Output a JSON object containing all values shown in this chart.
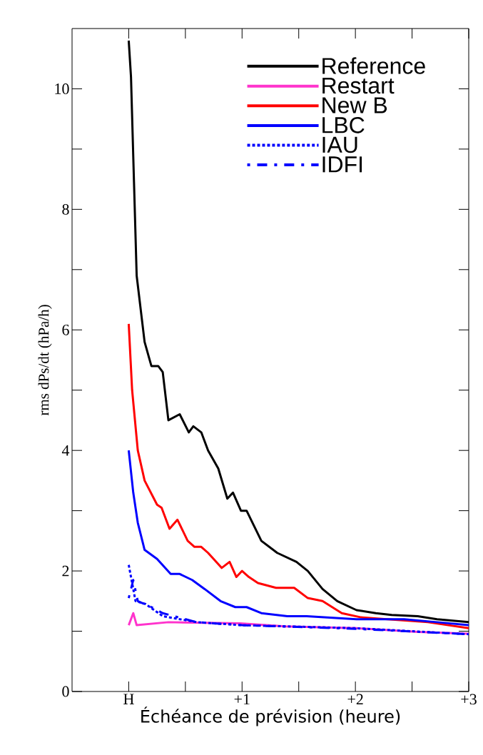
{
  "chart_data": {
    "type": "line",
    "xlabel": "Échéance de prévision (heure)",
    "ylabel": "rms dPs/dt (hPa/h)",
    "xlim": [
      -0.5,
      3
    ],
    "ylim": [
      0,
      11
    ],
    "xticks": [
      {
        "value": 0,
        "label": "H"
      },
      {
        "value": 0.5,
        "label": null
      },
      {
        "value": 1,
        "label": "+1"
      },
      {
        "value": 1.5,
        "label": null
      },
      {
        "value": 2,
        "label": "+2"
      },
      {
        "value": 2.5,
        "label": null
      },
      {
        "value": 3,
        "label": "+3"
      }
    ],
    "yticks": [
      0,
      {
        "value": 1,
        "label": null
      },
      2,
      {
        "value": 3,
        "label": null
      },
      4,
      {
        "value": 5,
        "label": null
      },
      6,
      {
        "value": 7,
        "label": null
      },
      8,
      {
        "value": 9,
        "label": null
      },
      10
    ],
    "legend": "top right",
    "grid": false,
    "marker": "none",
    "series": [
      {
        "name": "Reference",
        "color": "#000000",
        "line_style": "solid",
        "x": [
          0,
          0.02,
          0.07,
          0.14,
          0.2,
          0.26,
          0.3,
          0.35,
          0.45,
          0.53,
          0.57,
          0.64,
          0.7,
          0.79,
          0.87,
          0.92,
          0.99,
          1.04,
          1.17,
          1.31,
          1.48,
          1.58,
          1.71,
          1.84,
          2.01,
          2.18,
          2.32,
          2.55,
          2.72,
          3
        ],
        "values": [
          10.8,
          10.2,
          6.9,
          5.8,
          5.4,
          5.4,
          5.3,
          4.5,
          4.6,
          4.3,
          4.4,
          4.3,
          4.0,
          3.7,
          3.2,
          3.3,
          3.0,
          3.0,
          2.5,
          2.3,
          2.15,
          2.0,
          1.7,
          1.5,
          1.35,
          1.3,
          1.27,
          1.25,
          1.2,
          1.15
        ]
      },
      {
        "name": "Restart",
        "color": "#ff33cc",
        "line_style": "solid",
        "x": [
          0,
          0.04,
          0.07,
          0.35,
          0.98,
          1.38,
          2.01,
          2.55,
          3
        ],
        "values": [
          1.1,
          1.3,
          1.1,
          1.15,
          1.13,
          1.08,
          1.05,
          0.99,
          0.96
        ]
      },
      {
        "name": "New B",
        "color": "#ff0000",
        "line_style": "solid",
        "x": [
          0,
          0.03,
          0.08,
          0.14,
          0.25,
          0.29,
          0.36,
          0.43,
          0.52,
          0.58,
          0.64,
          0.7,
          0.82,
          0.89,
          0.95,
          1.0,
          1.06,
          1.14,
          1.3,
          1.46,
          1.58,
          1.71,
          1.88,
          2.05,
          2.32,
          2.64,
          3
        ],
        "values": [
          6.1,
          5.0,
          4.0,
          3.5,
          3.1,
          3.05,
          2.7,
          2.85,
          2.5,
          2.4,
          2.4,
          2.3,
          2.05,
          2.15,
          1.9,
          2.0,
          1.9,
          1.8,
          1.72,
          1.72,
          1.55,
          1.5,
          1.3,
          1.23,
          null,
          1.15,
          1.05
        ]
      },
      {
        "name": "LBC",
        "color": "#0000ff",
        "line_style": "solid",
        "x": [
          0,
          0.04,
          0.08,
          0.14,
          0.25,
          0.37,
          0.45,
          0.56,
          0.67,
          0.81,
          0.94,
          1.04,
          1.17,
          1.4,
          1.57,
          2.01,
          2.43,
          2.72,
          3
        ],
        "values": [
          4.0,
          3.3,
          2.8,
          2.35,
          2.2,
          1.95,
          1.95,
          1.85,
          1.7,
          1.5,
          1.4,
          1.4,
          1.3,
          1.25,
          1.25,
          1.2,
          1.2,
          1.15,
          1.1
        ]
      },
      {
        "name": "IAU",
        "color": "#0000ff",
        "line_style": "dotted",
        "x": [
          0,
          0.06,
          0.15,
          0.3,
          0.6,
          1.0,
          2.0,
          3.0
        ],
        "values": [
          2.1,
          1.5,
          1.45,
          1.25,
          1.15,
          1.1,
          1.05,
          0.95
        ]
      },
      {
        "name": "IDFI",
        "color": "#0000ff",
        "line_style": "dashdot",
        "x": [
          0,
          0.04,
          0.08,
          0.2,
          0.3,
          0.6,
          1.0,
          2.0,
          3.0
        ],
        "values": [
          1.55,
          1.85,
          1.5,
          1.4,
          1.3,
          1.15,
          1.1,
          1.04,
          0.95
        ]
      }
    ]
  }
}
